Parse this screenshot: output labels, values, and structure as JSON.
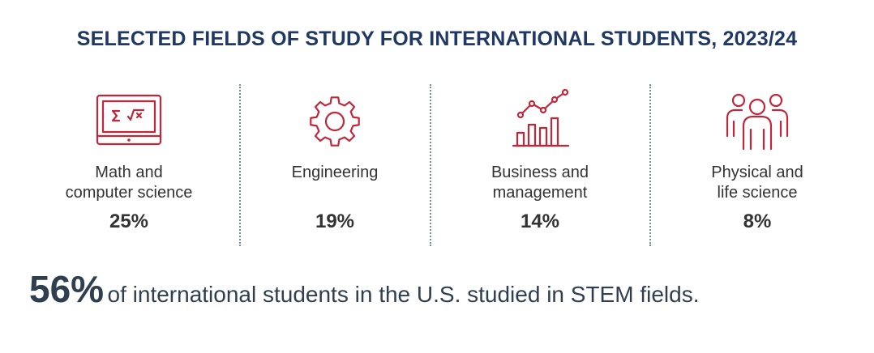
{
  "title": "SELECTED FIELDS OF STUDY FOR INTERNATIONAL STUDENTS, 2023/24",
  "colors": {
    "title": "#1f3864",
    "icon": "#c0273a",
    "text": "#333333",
    "divider": "#7a8aa0"
  },
  "chart_data": {
    "type": "table",
    "title": "SELECTED FIELDS OF STUDY FOR INTERNATIONAL STUDENTS, 2023/24",
    "categories": [
      "Math and computer science",
      "Engineering",
      "Business and management",
      "Physical and life science"
    ],
    "values": [
      25,
      19,
      14,
      8
    ],
    "value_labels": [
      "25%",
      "19%",
      "14%",
      "8%"
    ],
    "unit": "%"
  },
  "fields": [
    {
      "label": "Math and\ncomputer science",
      "value": "25%",
      "icon": "math-computer-icon"
    },
    {
      "label": "Engineering",
      "value": "19%",
      "icon": "gear-icon"
    },
    {
      "label": "Business and\nmanagement",
      "value": "14%",
      "icon": "bar-chart-icon"
    },
    {
      "label": "Physical and\nlife science",
      "value": "8%",
      "icon": "people-icon"
    }
  ],
  "summary": {
    "highlight": "56%",
    "text": "of international students in the U.S. studied in STEM fields."
  }
}
